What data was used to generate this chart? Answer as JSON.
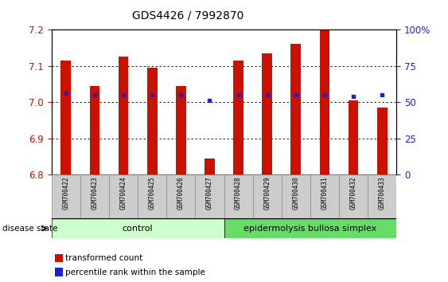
{
  "title": "GDS4426 / 7992870",
  "samples": [
    "GSM700422",
    "GSM700423",
    "GSM700424",
    "GSM700425",
    "GSM700426",
    "GSM700427",
    "GSM700428",
    "GSM700429",
    "GSM700430",
    "GSM700431",
    "GSM700432",
    "GSM700433"
  ],
  "red_values": [
    7.115,
    7.045,
    7.125,
    7.095,
    7.045,
    6.845,
    7.115,
    7.135,
    7.16,
    7.2,
    7.005,
    6.985
  ],
  "blue_values": [
    7.025,
    7.02,
    7.02,
    7.02,
    7.02,
    7.005,
    7.02,
    7.02,
    7.02,
    7.02,
    7.015,
    7.02
  ],
  "ymin": 6.8,
  "ymax": 7.2,
  "yticks": [
    6.8,
    6.9,
    7.0,
    7.1,
    7.2
  ],
  "right_yticks": [
    0,
    25,
    50,
    75,
    100
  ],
  "right_ytick_labels": [
    "0",
    "25",
    "50",
    "75",
    "100%"
  ],
  "bar_color": "#cc1100",
  "blue_color": "#2222cc",
  "plot_bg": "#ffffff",
  "grid_color": "#000000",
  "left_tick_color": "#cc1100",
  "right_tick_color": "#2222cc",
  "control_count": 6,
  "control_label": "control",
  "disease_label": "epidermolysis bullosa simplex",
  "disease_state_label": "disease state",
  "legend_red": "transformed count",
  "legend_blue": "percentile rank within the sample",
  "control_bg": "#ccffcc",
  "disease_bg": "#66dd66",
  "sample_bg": "#cccccc",
  "bar_width": 0.35
}
